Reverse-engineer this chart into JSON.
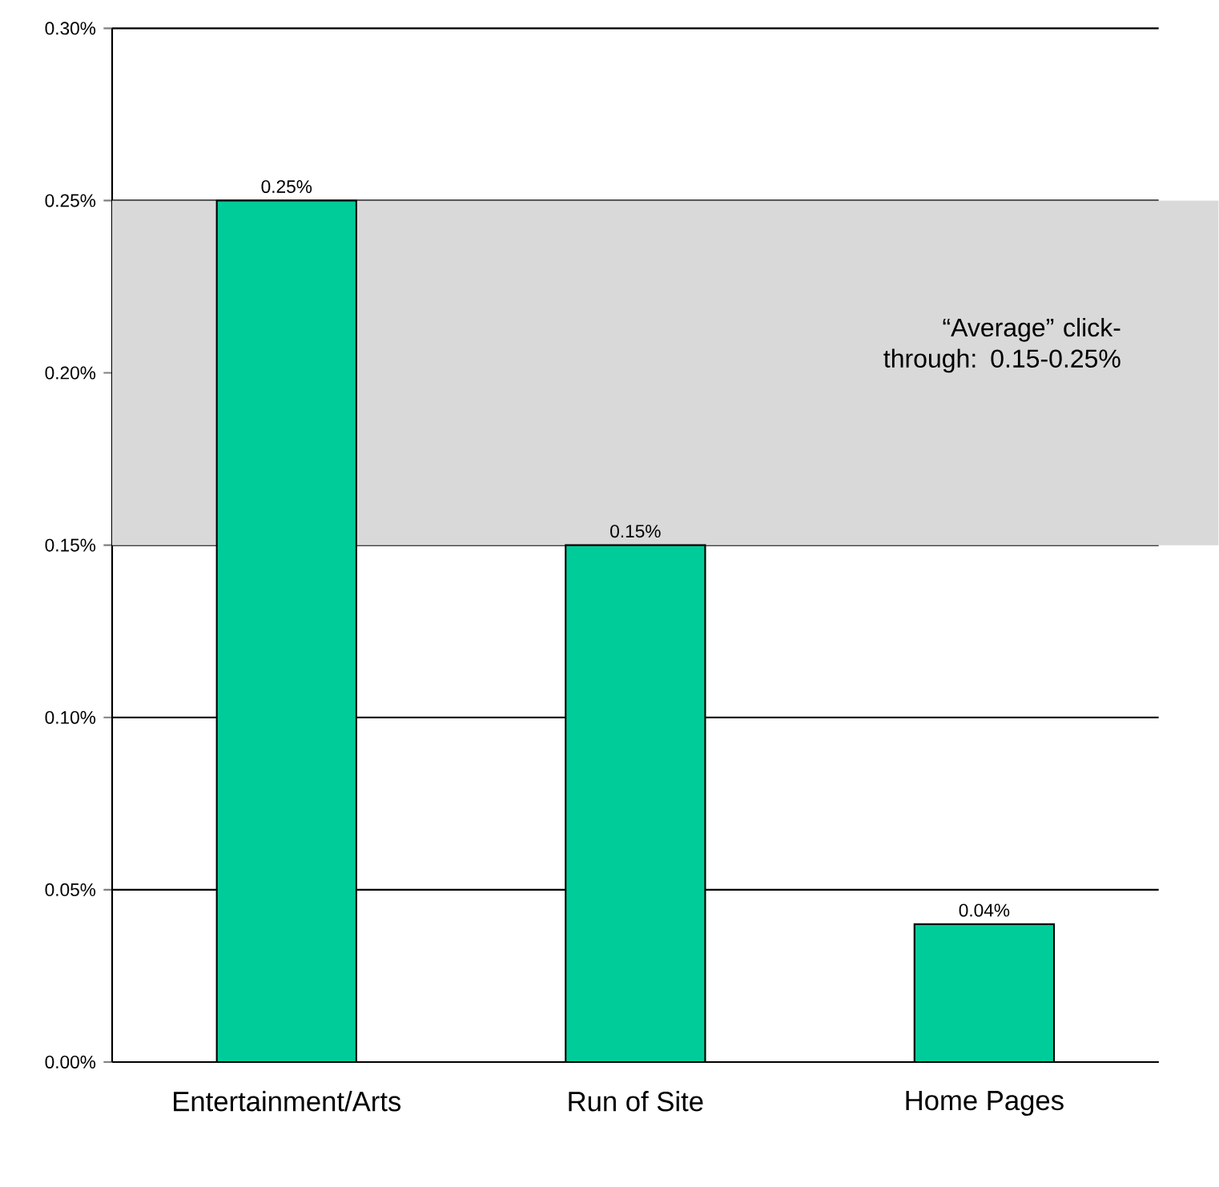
{
  "chart_data": {
    "type": "bar",
    "categories": [
      "Entertainment/Arts",
      "Run of Site",
      "Home Pages"
    ],
    "values": [
      0.25,
      0.15,
      0.04
    ],
    "value_labels": [
      "0.25%",
      "0.15%",
      "0.04%"
    ],
    "color": "#00cc99",
    "ylim": [
      0,
      0.3
    ],
    "yticks": [
      {
        "value": 0,
        "label": "0.00%"
      },
      {
        "value": 0.05,
        "label": "0.05%"
      },
      {
        "value": 0.1,
        "label": "0.10%"
      },
      {
        "value": 0.15,
        "label": "0.15%"
      },
      {
        "value": 0.2,
        "label": "0.20%"
      },
      {
        "value": 0.25,
        "label": "0.25%"
      },
      {
        "value": 0.3,
        "label": "0.30%"
      }
    ],
    "grid": "y",
    "bands": [
      {
        "axis": "y",
        "from": 0.15,
        "to": 0.25,
        "label": "“Average” click-through: 0.15-0.25%",
        "color": "#d9d9d9"
      }
    ]
  }
}
